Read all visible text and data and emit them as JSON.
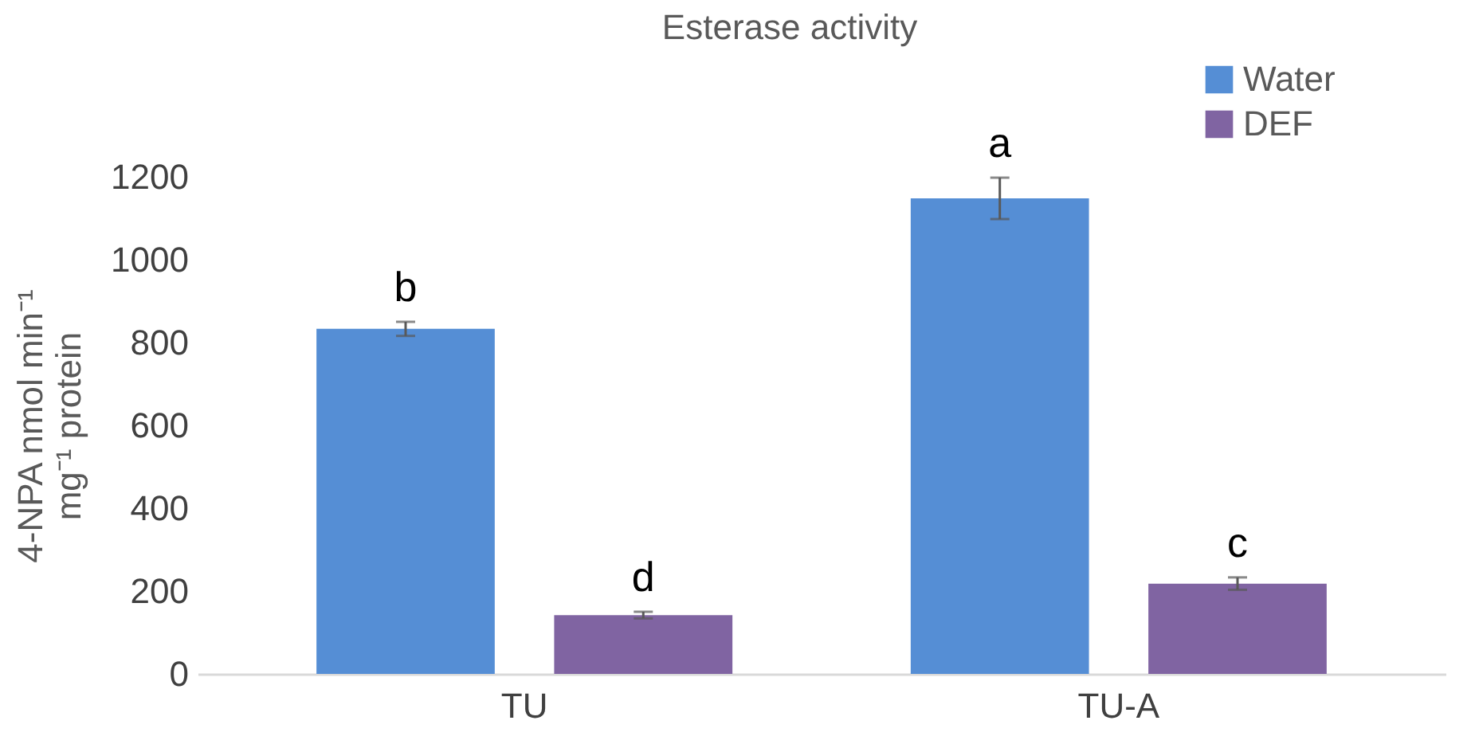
{
  "chart_data": {
    "type": "bar",
    "title": "Esterase activity",
    "ylabel": "4-NPA nmol min⁻¹ mg⁻¹ protein",
    "categories": [
      "TU",
      "TU-A"
    ],
    "series": [
      {
        "name": "Water",
        "color": "#558ed5",
        "values": [
          833,
          1148
        ],
        "errors": [
          17,
          50
        ]
      },
      {
        "name": "DEF",
        "color": "#8064a2",
        "values": [
          142,
          218
        ],
        "errors": [
          8,
          15
        ]
      }
    ],
    "ylim": [
      0,
      1200
    ],
    "yticks": [
      0,
      200,
      400,
      600,
      800,
      1000,
      1200
    ],
    "grid": false,
    "legend": "top right",
    "annotations": [
      "b",
      "d",
      "a",
      "c"
    ]
  }
}
